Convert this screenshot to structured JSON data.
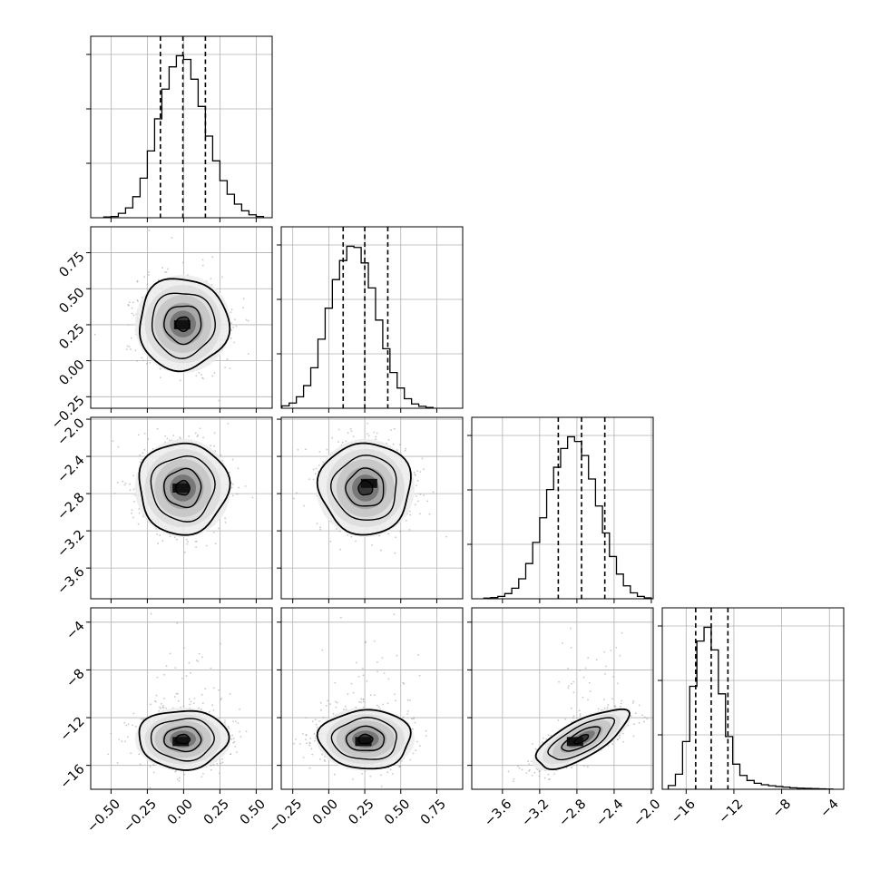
{
  "figure": {
    "type": "corner-plot",
    "style": {
      "line_color": "#000000",
      "grid_color": "#b0b0b0",
      "scatter_color": "#9a9a9a",
      "background": "#ffffff"
    }
  },
  "chart_data": {
    "type": "corner",
    "n_params": 4,
    "grid": true,
    "params": [
      {
        "index": 0,
        "range": [
          -0.64,
          0.61
        ],
        "ticks": [
          -0.5,
          -0.25,
          0.0,
          0.25,
          0.5
        ],
        "tick_labels": [
          "−0.50",
          "−0.25",
          "0.00",
          "0.25",
          "0.50"
        ],
        "quantiles": [
          -0.16,
          -0.005,
          0.15
        ],
        "hist": {
          "bin_edges": [
            -0.55,
            -0.5,
            -0.45,
            -0.4,
            -0.35,
            -0.3,
            -0.25,
            -0.2,
            -0.15,
            -0.1,
            -0.05,
            0.0,
            0.05,
            0.1,
            0.15,
            0.2,
            0.25,
            0.3,
            0.35,
            0.4,
            0.45,
            0.5,
            0.55
          ],
          "counts": [
            3,
            5,
            18,
            40,
            85,
            160,
            270,
            400,
            520,
            610,
            655,
            640,
            560,
            450,
            330,
            230,
            150,
            95,
            55,
            28,
            12,
            5
          ]
        }
      },
      {
        "index": 1,
        "range": [
          -0.33,
          0.93
        ],
        "ticks": [
          -0.25,
          0.0,
          0.25,
          0.5,
          0.75
        ],
        "tick_labels": [
          "−0.25",
          "0.00",
          "0.25",
          "0.50",
          "0.75"
        ],
        "quantiles": [
          0.1,
          0.25,
          0.41
        ],
        "hist": {
          "bin_edges": [
            -0.325,
            -0.275,
            -0.225,
            -0.175,
            -0.125,
            -0.075,
            -0.025,
            0.025,
            0.075,
            0.125,
            0.175,
            0.225,
            0.275,
            0.325,
            0.375,
            0.425,
            0.475,
            0.525,
            0.575,
            0.625,
            0.675,
            0.725
          ],
          "counts": [
            10,
            22,
            48,
            95,
            170,
            290,
            420,
            540,
            620,
            680,
            675,
            610,
            505,
            370,
            250,
            150,
            85,
            40,
            18,
            8,
            3
          ]
        }
      },
      {
        "index": 2,
        "range": [
          -3.93,
          -1.98
        ],
        "ticks": [
          -3.6,
          -3.2,
          -2.8,
          -2.4,
          -2.0
        ],
        "tick_labels": [
          "−3.6",
          "−3.2",
          "−2.8",
          "−2.4",
          "−2.0"
        ],
        "quantiles": [
          -3.0,
          -2.75,
          -2.5
        ],
        "hist": {
          "bin_edges": [
            -3.8,
            -3.725,
            -3.65,
            -3.575,
            -3.5,
            -3.425,
            -3.35,
            -3.275,
            -3.2,
            -3.125,
            -3.05,
            -2.975,
            -2.9,
            -2.825,
            -2.75,
            -2.675,
            -2.6,
            -2.525,
            -2.45,
            -2.375,
            -2.3,
            -2.225,
            -2.15,
            -2.075,
            -2.0
          ],
          "counts": [
            3,
            5,
            10,
            22,
            45,
            85,
            150,
            240,
            345,
            465,
            560,
            640,
            690,
            670,
            610,
            510,
            395,
            280,
            180,
            105,
            55,
            25,
            10,
            4
          ]
        }
      },
      {
        "index": 3,
        "range": [
          -18.0,
          -2.8
        ],
        "ticks": [
          -16,
          -12,
          -8,
          -4
        ],
        "tick_labels": [
          "−16",
          "−12",
          "−8",
          "−4"
        ],
        "quantiles": [
          -15.2,
          -13.9,
          -12.5
        ],
        "hist": {
          "bin_edges": [
            -17.5,
            -16.9,
            -16.3,
            -15.7,
            -15.1,
            -14.5,
            -13.9,
            -13.3,
            -12.7,
            -12.1,
            -11.5,
            -10.9,
            -10.3,
            -9.7,
            -9.1,
            -8.5,
            -7.9,
            -7.3,
            -6.7,
            -6.1,
            -5.5,
            -4.9,
            -4.3,
            -3.7
          ],
          "counts": [
            30,
            120,
            380,
            820,
            1180,
            1290,
            1110,
            760,
            420,
            200,
            110,
            70,
            48,
            36,
            28,
            22,
            17,
            12,
            9,
            7,
            5,
            3,
            2
          ]
        }
      }
    ],
    "pairs": [
      {
        "x": 0,
        "y": 1,
        "mean": [
          -0.005,
          0.255
        ],
        "std": [
          0.15,
          0.155
        ],
        "corr": 0.0,
        "core": {
          "cx": -0.01,
          "cy": 0.25
        }
      },
      {
        "x": 0,
        "y": 2,
        "mean": [
          -0.005,
          -2.74
        ],
        "std": [
          0.15,
          0.24
        ],
        "corr": 0.0,
        "core": {
          "cx": -0.02,
          "cy": -2.74
        }
      },
      {
        "x": 1,
        "y": 2,
        "mean": [
          0.255,
          -2.74
        ],
        "std": [
          0.155,
          0.24
        ],
        "corr": 0.0,
        "core": {
          "cx": 0.28,
          "cy": -2.69
        }
      },
      {
        "x": 0,
        "y": 3,
        "mean": [
          -0.005,
          -13.8
        ],
        "std": [
          0.15,
          1.2
        ],
        "corr": 0.0,
        "core": {
          "cx": -0.02,
          "cy": -14.0
        }
      },
      {
        "x": 1,
        "y": 3,
        "mean": [
          0.255,
          -13.8
        ],
        "std": [
          0.155,
          1.2
        ],
        "corr": 0.0,
        "core": {
          "cx": 0.24,
          "cy": -14.0
        }
      },
      {
        "x": 2,
        "y": 3,
        "mean": [
          -2.75,
          -13.8
        ],
        "std": [
          0.24,
          1.2
        ],
        "corr": 0.72,
        "core": {
          "cx": -2.82,
          "cy": -14.0
        }
      }
    ]
  }
}
